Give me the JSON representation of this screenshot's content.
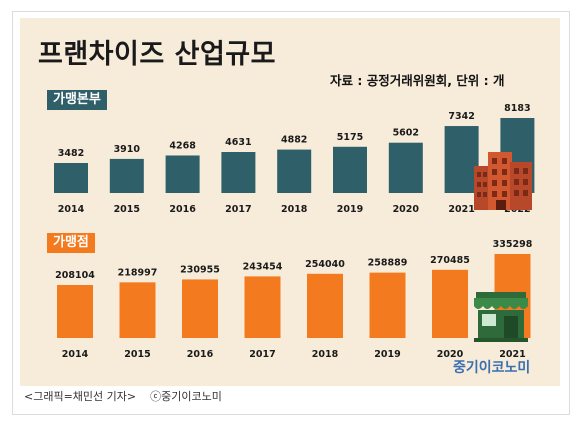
{
  "title": "프랜차이즈 산업규모",
  "source_line": "자료 : 공정거래위원회, 단위 : 개",
  "brand": "중기이코노미",
  "caption_credit": "<그래픽=채민선 기자>",
  "caption_copyright": "ⓒ중기이코노미",
  "colors": {
    "background": "#f7ecda",
    "headquarters_bar": "#2f5f68",
    "stores_bar": "#f47a1f",
    "headquarters_label_bg": "#2f5f68",
    "stores_label_bg": "#f47a1f"
  },
  "icons": [
    "office-building-icon",
    "storefront-icon"
  ],
  "chart_data": [
    {
      "type": "bar",
      "section_label": "가맹본부",
      "categories": [
        "2014",
        "2015",
        "2016",
        "2017",
        "2018",
        "2019",
        "2020",
        "2021",
        "2022"
      ],
      "values": [
        3482,
        3910,
        4268,
        4631,
        4882,
        5175,
        5602,
        7342,
        8183
      ],
      "grid": false
    },
    {
      "type": "bar",
      "section_label": "가맹점",
      "categories": [
        "2014",
        "2015",
        "2016",
        "2017",
        "2018",
        "2019",
        "2020",
        "2021"
      ],
      "values": [
        208104,
        218997,
        230955,
        243454,
        254040,
        258889,
        270485,
        335298
      ],
      "grid": false
    }
  ]
}
